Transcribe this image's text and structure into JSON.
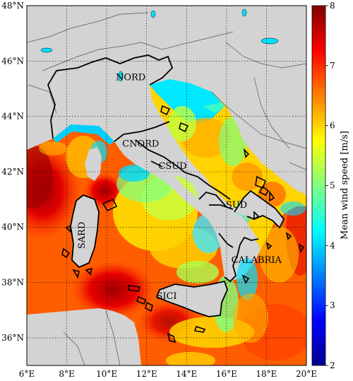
{
  "map": {
    "lon_range": [
      6,
      20
    ],
    "lat_range": [
      35,
      48
    ],
    "lon_ticks": [
      {
        "value": 6,
        "label": "6°E"
      },
      {
        "value": 8,
        "label": "8°E"
      },
      {
        "value": 10,
        "label": "10°E"
      },
      {
        "value": 12,
        "label": "12°E"
      },
      {
        "value": 14,
        "label": "14°E"
      },
      {
        "value": 16,
        "label": "16°E"
      },
      {
        "value": 18,
        "label": "18°E"
      },
      {
        "value": 20,
        "label": "20°E"
      }
    ],
    "lat_ticks": [
      {
        "value": 36,
        "label": "36°N"
      },
      {
        "value": 38,
        "label": "38°N"
      },
      {
        "value": 40,
        "label": "40°N"
      },
      {
        "value": 42,
        "label": "42°N"
      },
      {
        "value": 44,
        "label": "44°N"
      },
      {
        "value": 46,
        "label": "46°N"
      },
      {
        "value": 48,
        "label": "48°N"
      }
    ],
    "grid": true,
    "regions": [
      {
        "name": "NORD",
        "lon": 11.2,
        "lat": 45.3
      },
      {
        "name": "CNORD",
        "lon": 11.7,
        "lat": 42.9
      },
      {
        "name": "CSUD",
        "lon": 13.3,
        "lat": 42.1
      },
      {
        "name": "SARD",
        "lon": 8.9,
        "lat": 39.7,
        "rotate": true
      },
      {
        "name": "SUD",
        "lon": 16.5,
        "lat": 40.7
      },
      {
        "name": "CALABRIA",
        "lon": 17.5,
        "lat": 38.7
      },
      {
        "name": "SICI",
        "lon": 13.0,
        "lat": 37.4
      }
    ],
    "colors": {
      "land": "#d3d3d3",
      "border": "#000000",
      "grid": "#000000"
    }
  },
  "colorbar": {
    "label": "Mean wind speed [m/s]",
    "min": 2,
    "max": 8,
    "ticks": [
      "2",
      "3",
      "4",
      "5",
      "6",
      "7",
      "8"
    ],
    "colormap": "jet"
  }
}
